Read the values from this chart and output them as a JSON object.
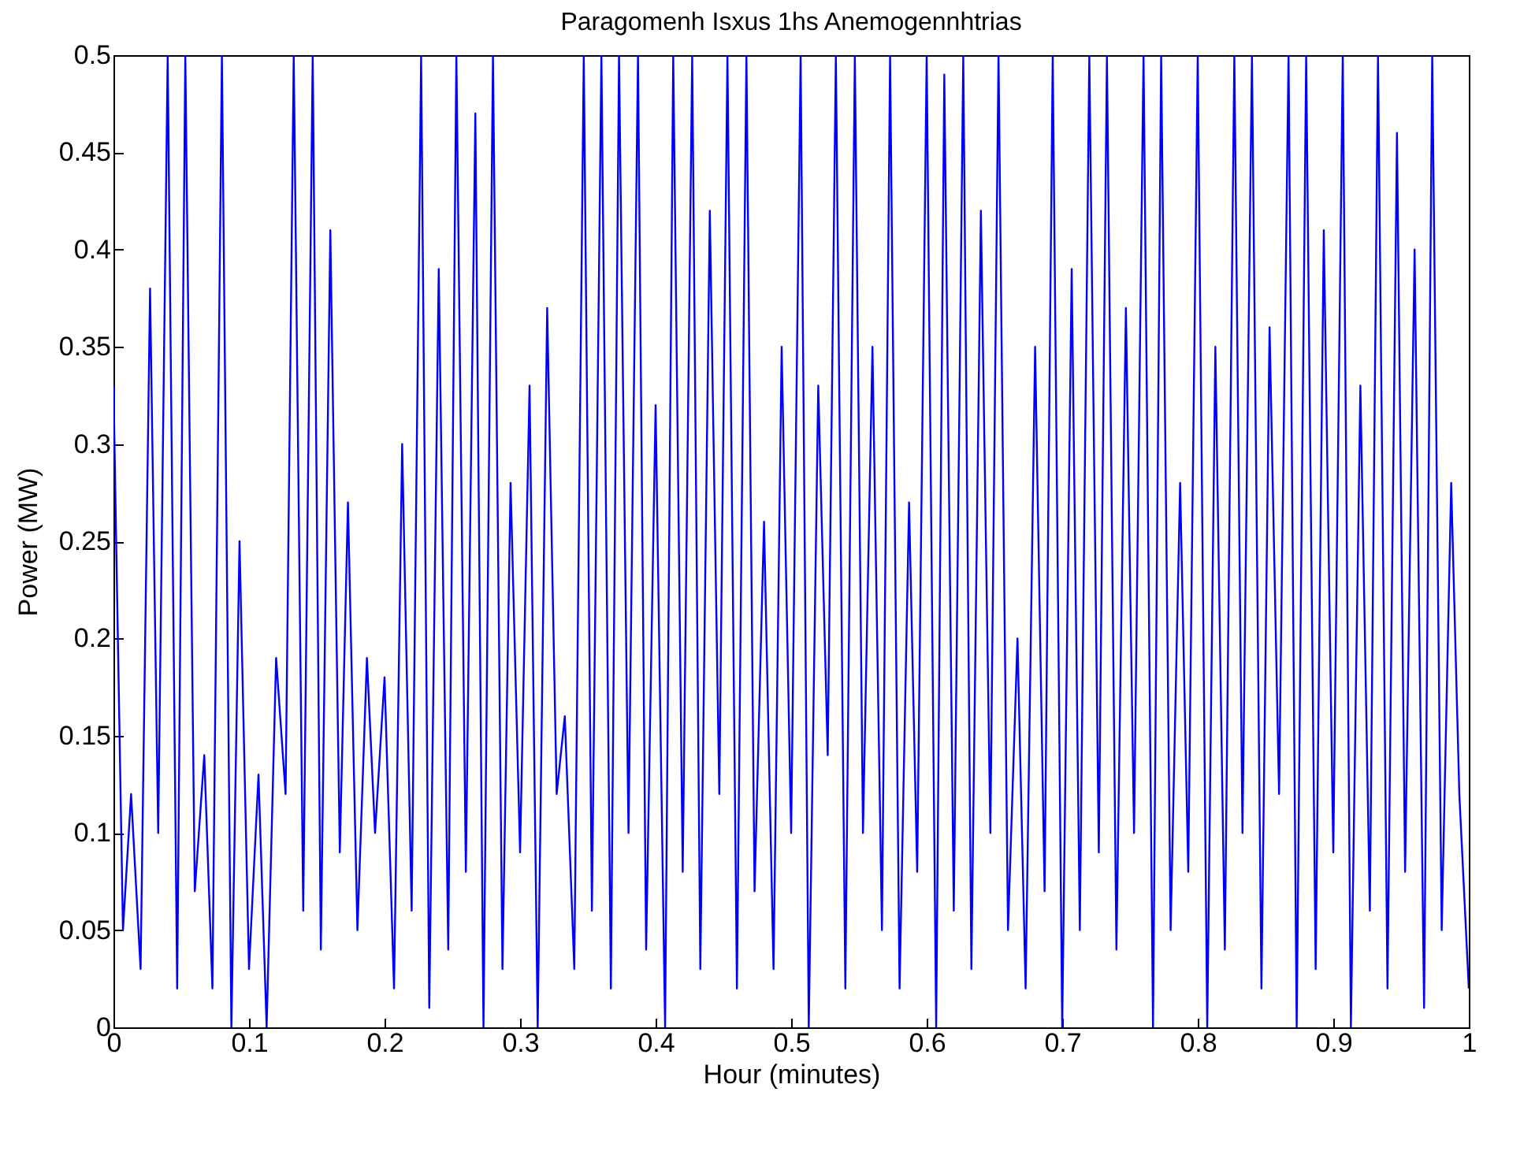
{
  "chart_data": {
    "type": "line",
    "title": "Paragomenh Isxus 1hs Anemogennhtrias",
    "xlabel": "Hour (minutes)",
    "ylabel": "Power (MW)",
    "x": [
      0,
      0.007,
      0.013,
      0.02,
      0.027,
      0.033,
      0.04,
      0.047,
      0.053,
      0.06,
      0.067,
      0.073,
      0.08,
      0.087,
      0.093,
      0.1,
      0.107,
      0.113,
      0.12,
      0.127,
      0.133,
      0.14,
      0.147,
      0.153,
      0.16,
      0.167,
      0.173,
      0.18,
      0.187,
      0.193,
      0.2,
      0.207,
      0.213,
      0.22,
      0.227,
      0.233,
      0.24,
      0.247,
      0.253,
      0.26,
      0.267,
      0.273,
      0.28,
      0.287,
      0.293,
      0.3,
      0.307,
      0.313,
      0.32,
      0.327,
      0.333,
      0.34,
      0.347,
      0.353,
      0.36,
      0.367,
      0.373,
      0.38,
      0.387,
      0.393,
      0.4,
      0.407,
      0.413,
      0.42,
      0.427,
      0.433,
      0.44,
      0.447,
      0.453,
      0.46,
      0.467,
      0.473,
      0.48,
      0.487,
      0.493,
      0.5,
      0.507,
      0.513,
      0.52,
      0.527,
      0.533,
      0.54,
      0.547,
      0.553,
      0.56,
      0.567,
      0.573,
      0.58,
      0.587,
      0.593,
      0.6,
      0.607,
      0.613,
      0.62,
      0.627,
      0.633,
      0.64,
      0.647,
      0.653,
      0.66,
      0.667,
      0.673,
      0.68,
      0.687,
      0.693,
      0.7,
      0.707,
      0.713,
      0.72,
      0.727,
      0.733,
      0.74,
      0.747,
      0.753,
      0.76,
      0.767,
      0.773,
      0.78,
      0.787,
      0.793,
      0.8,
      0.807,
      0.813,
      0.82,
      0.827,
      0.833,
      0.84,
      0.847,
      0.853,
      0.86,
      0.867,
      0.873,
      0.88,
      0.887,
      0.893,
      0.9,
      0.907,
      0.913,
      0.92,
      0.927,
      0.933,
      0.94,
      0.947,
      0.953,
      0.96,
      0.967,
      0.973,
      0.98,
      0.987,
      0.993,
      1
    ],
    "series": [
      {
        "color": "#0000ff",
        "values": [
          0.33,
          0.05,
          0.12,
          0.03,
          0.38,
          0.1,
          0.5,
          0.02,
          0.5,
          0.07,
          0.14,
          0.02,
          0.5,
          0.0,
          0.25,
          0.03,
          0.13,
          0.0,
          0.19,
          0.12,
          0.5,
          0.06,
          0.5,
          0.04,
          0.41,
          0.09,
          0.27,
          0.05,
          0.19,
          0.1,
          0.18,
          0.02,
          0.3,
          0.06,
          0.5,
          0.01,
          0.39,
          0.04,
          0.5,
          0.08,
          0.47,
          0.0,
          0.5,
          0.03,
          0.28,
          0.09,
          0.33,
          0.0,
          0.37,
          0.12,
          0.16,
          0.03,
          0.5,
          0.06,
          0.5,
          0.02,
          0.5,
          0.1,
          0.5,
          0.04,
          0.32,
          0.0,
          0.5,
          0.08,
          0.5,
          0.03,
          0.42,
          0.12,
          0.5,
          0.02,
          0.5,
          0.07,
          0.26,
          0.03,
          0.35,
          0.1,
          0.5,
          0.0,
          0.33,
          0.14,
          0.5,
          0.02,
          0.5,
          0.1,
          0.35,
          0.05,
          0.5,
          0.02,
          0.27,
          0.08,
          0.5,
          0.0,
          0.49,
          0.06,
          0.5,
          0.03,
          0.42,
          0.1,
          0.5,
          0.05,
          0.2,
          0.02,
          0.35,
          0.07,
          0.5,
          0.0,
          0.39,
          0.05,
          0.5,
          0.09,
          0.5,
          0.04,
          0.37,
          0.1,
          0.5,
          0.0,
          0.5,
          0.05,
          0.28,
          0.08,
          0.5,
          0.0,
          0.35,
          0.04,
          0.5,
          0.1,
          0.5,
          0.02,
          0.36,
          0.12,
          0.5,
          0.0,
          0.5,
          0.03,
          0.41,
          0.09,
          0.5,
          0.0,
          0.33,
          0.06,
          0.5,
          0.02,
          0.46,
          0.08,
          0.4,
          0.01,
          0.5,
          0.05,
          0.28,
          0.12,
          0.02
        ]
      }
    ],
    "xlim": [
      0,
      1
    ],
    "xticks": [
      0,
      0.1,
      0.2,
      0.3,
      0.4,
      0.5,
      0.6,
      0.7,
      0.8,
      0.9,
      1
    ],
    "ylim": [
      0,
      0.5
    ],
    "yticks": [
      0,
      0.05,
      0.1,
      0.15,
      0.2,
      0.25,
      0.3,
      0.35,
      0.4,
      0.45,
      0.5
    ],
    "grid": false,
    "legend": false,
    "marker": "none",
    "line_style": "solid"
  }
}
